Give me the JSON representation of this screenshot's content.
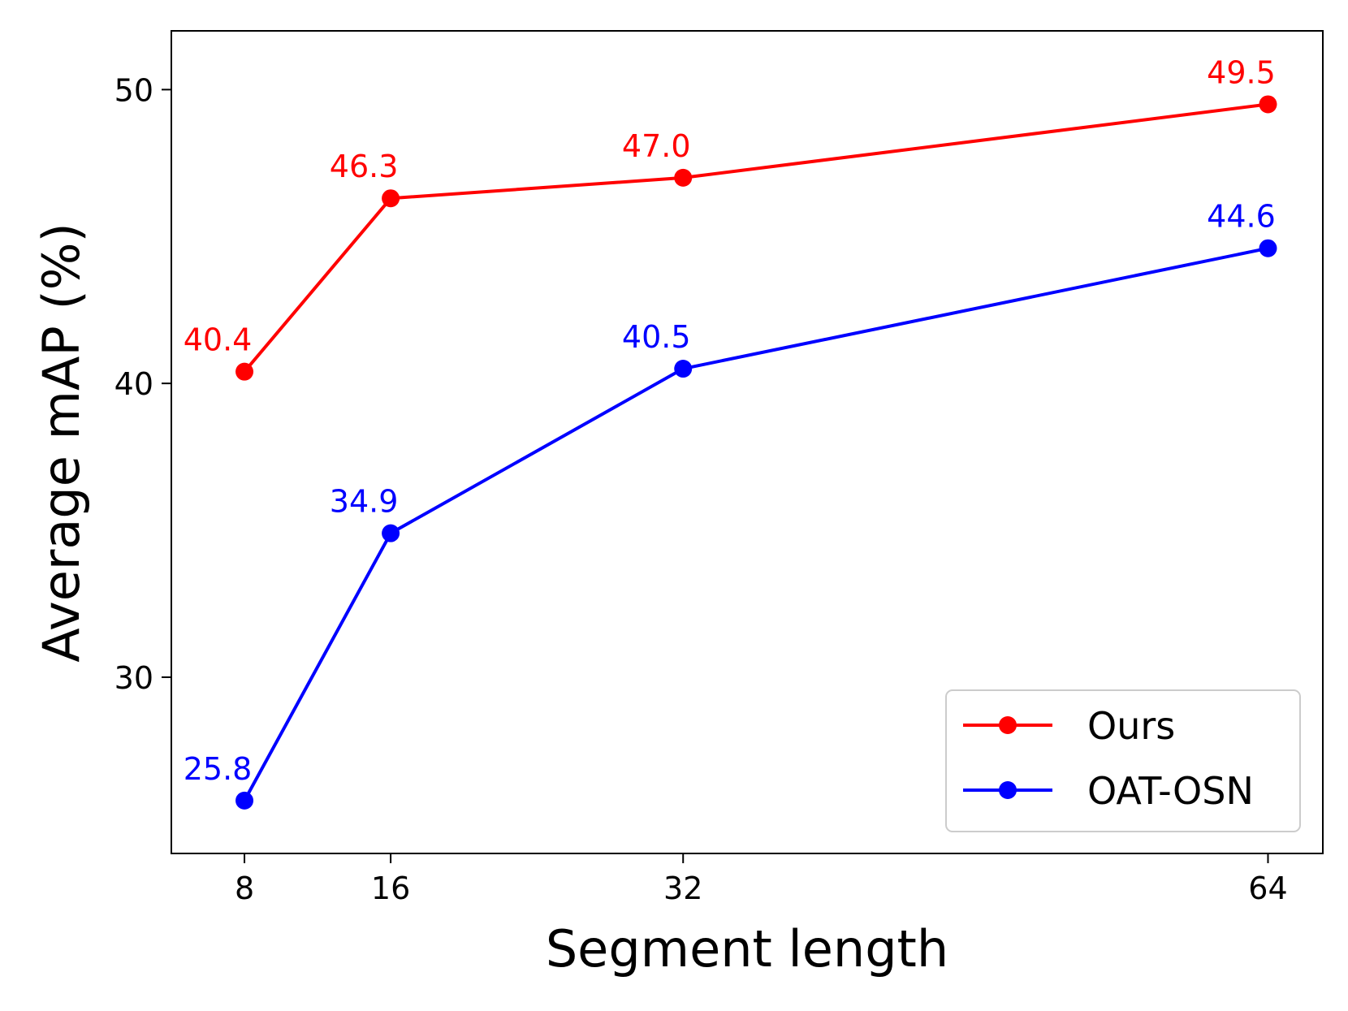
{
  "chart_data": {
    "type": "line",
    "title": "",
    "xlabel": "Segment length",
    "ylabel": "Average mAP (%)",
    "x": [
      8,
      16,
      32,
      64
    ],
    "x_tick_labels": [
      "8",
      "16",
      "32",
      "64"
    ],
    "y_ticks": [
      30,
      40,
      50
    ],
    "y_tick_labels": [
      "30",
      "40",
      "50"
    ],
    "xlim": [
      4,
      67
    ],
    "ylim": [
      24,
      52
    ],
    "grid": false,
    "legend_position": "bottom-right",
    "series": [
      {
        "name": "Ours",
        "color": "#ff0000",
        "values": [
          40.4,
          46.3,
          47.0,
          49.5
        ],
        "labels": [
          "40.4",
          "46.3",
          "47.0",
          "49.5"
        ]
      },
      {
        "name": "OAT-OSN",
        "color": "#0000ff",
        "values": [
          25.8,
          34.9,
          40.5,
          44.6
        ],
        "labels": [
          "25.8",
          "34.9",
          "40.5",
          "44.6"
        ]
      }
    ]
  }
}
